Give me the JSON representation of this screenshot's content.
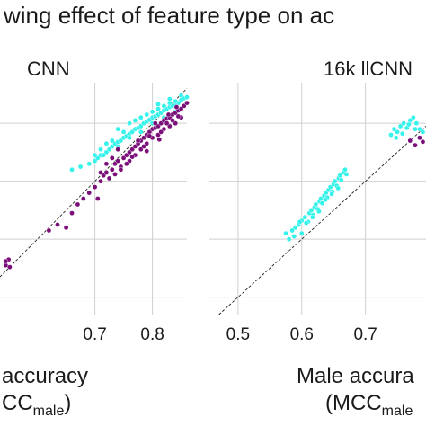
{
  "chart_data": [
    {
      "type": "scatter",
      "title": "CNN",
      "xlabel": "accuracy",
      "xlabel_line2_prefix": "CC",
      "xlabel_line2_sub": "male",
      "xlabel_line2_suffix": ")",
      "xticks": [
        "0.7",
        "0.8"
      ],
      "xlim": [
        0.535,
        0.86
      ],
      "ylim": [
        0.47,
        0.87
      ],
      "identity_line": true,
      "grid": true,
      "series_colors": [
        "#35f2ea",
        "#7a0f7a"
      ],
      "series": [
        {
          "color": "#35f2ea",
          "points": [
            [
              0.66,
              0.72
            ],
            [
              0.675,
              0.725
            ],
            [
              0.69,
              0.73
            ],
            [
              0.7,
              0.735
            ],
            [
              0.705,
              0.74
            ],
            [
              0.71,
              0.745
            ],
            [
              0.715,
              0.745
            ],
            [
              0.72,
              0.75
            ],
            [
              0.725,
              0.755
            ],
            [
              0.73,
              0.76
            ],
            [
              0.735,
              0.765
            ],
            [
              0.74,
              0.768
            ],
            [
              0.745,
              0.77
            ],
            [
              0.75,
              0.775
            ],
            [
              0.755,
              0.778
            ],
            [
              0.76,
              0.782
            ],
            [
              0.765,
              0.785
            ],
            [
              0.77,
              0.79
            ],
            [
              0.775,
              0.792
            ],
            [
              0.78,
              0.795
            ],
            [
              0.785,
              0.8
            ],
            [
              0.79,
              0.803
            ],
            [
              0.795,
              0.806
            ],
            [
              0.8,
              0.81
            ],
            [
              0.805,
              0.812
            ],
            [
              0.81,
              0.815
            ],
            [
              0.815,
              0.818
            ],
            [
              0.82,
              0.822
            ],
            [
              0.825,
              0.825
            ],
            [
              0.83,
              0.828
            ],
            [
              0.835,
              0.83
            ],
            [
              0.84,
              0.832
            ],
            [
              0.845,
              0.835
            ],
            [
              0.85,
              0.84
            ],
            [
              0.855,
              0.843
            ],
            [
              0.74,
              0.79
            ],
            [
              0.76,
              0.8
            ],
            [
              0.78,
              0.81
            ],
            [
              0.8,
              0.82
            ],
            [
              0.82,
              0.83
            ],
            [
              0.84,
              0.838
            ],
            [
              0.77,
              0.805
            ],
            [
              0.79,
              0.815
            ],
            [
              0.81,
              0.825
            ],
            [
              0.83,
              0.835
            ],
            [
              0.75,
              0.785
            ],
            [
              0.73,
              0.77
            ],
            [
              0.72,
              0.765
            ],
            [
              0.71,
              0.755
            ],
            [
              0.7,
              0.745
            ],
            [
              0.78,
              0.785
            ],
            [
              0.8,
              0.8
            ],
            [
              0.82,
              0.81
            ],
            [
              0.84,
              0.82
            ],
            [
              0.76,
              0.775
            ],
            [
              0.74,
              0.76
            ],
            [
              0.86,
              0.845
            ],
            [
              0.85,
              0.848
            ],
            [
              0.83,
              0.842
            ],
            [
              0.81,
              0.833
            ]
          ]
        },
        {
          "color": "#7a0f7a",
          "points": [
            [
              0.545,
              0.555
            ],
            [
              0.55,
              0.565
            ],
            [
              0.552,
              0.552
            ],
            [
              0.545,
              0.562
            ],
            [
              0.62,
              0.615
            ],
            [
              0.635,
              0.625
            ],
            [
              0.65,
              0.62
            ],
            [
              0.66,
              0.645
            ],
            [
              0.67,
              0.66
            ],
            [
              0.68,
              0.67
            ],
            [
              0.69,
              0.68
            ],
            [
              0.7,
              0.69
            ],
            [
              0.705,
              0.67
            ],
            [
              0.71,
              0.7
            ],
            [
              0.715,
              0.71
            ],
            [
              0.72,
              0.715
            ],
            [
              0.725,
              0.705
            ],
            [
              0.73,
              0.72
            ],
            [
              0.735,
              0.73
            ],
            [
              0.74,
              0.735
            ],
            [
              0.745,
              0.725
            ],
            [
              0.75,
              0.74
            ],
            [
              0.755,
              0.745
            ],
            [
              0.76,
              0.75
            ],
            [
              0.765,
              0.755
            ],
            [
              0.77,
              0.76
            ],
            [
              0.775,
              0.765
            ],
            [
              0.78,
              0.77
            ],
            [
              0.785,
              0.775
            ],
            [
              0.79,
              0.78
            ],
            [
              0.795,
              0.785
            ],
            [
              0.8,
              0.79
            ],
            [
              0.805,
              0.792
            ],
            [
              0.81,
              0.795
            ],
            [
              0.815,
              0.8
            ],
            [
              0.82,
              0.805
            ],
            [
              0.825,
              0.808
            ],
            [
              0.83,
              0.81
            ],
            [
              0.835,
              0.815
            ],
            [
              0.84,
              0.818
            ],
            [
              0.845,
              0.822
            ],
            [
              0.85,
              0.825
            ],
            [
              0.855,
              0.83
            ],
            [
              0.76,
              0.735
            ],
            [
              0.77,
              0.745
            ],
            [
              0.78,
              0.755
            ],
            [
              0.79,
              0.765
            ],
            [
              0.8,
              0.775
            ],
            [
              0.81,
              0.78
            ],
            [
              0.82,
              0.79
            ],
            [
              0.83,
              0.795
            ],
            [
              0.84,
              0.8
            ],
            [
              0.85,
              0.81
            ],
            [
              0.775,
              0.77
            ],
            [
              0.795,
              0.778
            ],
            [
              0.815,
              0.785
            ],
            [
              0.835,
              0.805
            ],
            [
              0.805,
              0.8
            ],
            [
              0.825,
              0.8
            ],
            [
              0.845,
              0.812
            ],
            [
              0.785,
              0.76
            ],
            [
              0.765,
              0.742
            ],
            [
              0.755,
              0.73
            ],
            [
              0.745,
              0.72
            ],
            [
              0.735,
              0.712
            ],
            [
              0.86,
              0.835
            ],
            [
              0.812,
              0.772
            ],
            [
              0.79,
              0.752
            ],
            [
              0.828,
              0.815
            ],
            [
              0.842,
              0.828
            ],
            [
              0.71,
              0.715
            ],
            [
              0.72,
              0.73
            ],
            [
              0.73,
              0.74
            ],
            [
              0.74,
              0.755
            ]
          ]
        }
      ]
    },
    {
      "type": "scatter",
      "title": "16k llCNN",
      "xlabel": "Male accura",
      "xlabel_line2_prefix": "(MCC",
      "xlabel_line2_sub": "male",
      "xlabel_line2_suffix": "",
      "xticks": [
        "0.5",
        "0.6",
        "0.7"
      ],
      "xlim": [
        0.455,
        0.795
      ],
      "ylim": [
        0.47,
        0.87
      ],
      "identity_line": true,
      "grid": true,
      "series_colors": [
        "#35f2ea",
        "#7a0f7a"
      ],
      "series": [
        {
          "color": "#35f2ea",
          "points": [
            [
              0.575,
              0.61
            ],
            [
              0.58,
              0.6
            ],
            [
              0.585,
              0.615
            ],
            [
              0.59,
              0.62
            ],
            [
              0.595,
              0.625
            ],
            [
              0.6,
              0.632
            ],
            [
              0.605,
              0.638
            ],
            [
              0.61,
              0.63
            ],
            [
              0.612,
              0.645
            ],
            [
              0.615,
              0.65
            ],
            [
              0.618,
              0.642
            ],
            [
              0.62,
              0.655
            ],
            [
              0.622,
              0.66
            ],
            [
              0.625,
              0.652
            ],
            [
              0.628,
              0.665
            ],
            [
              0.63,
              0.67
            ],
            [
              0.632,
              0.662
            ],
            [
              0.635,
              0.675
            ],
            [
              0.638,
              0.68
            ],
            [
              0.64,
              0.672
            ],
            [
              0.642,
              0.685
            ],
            [
              0.645,
              0.69
            ],
            [
              0.648,
              0.682
            ],
            [
              0.65,
              0.695
            ],
            [
              0.652,
              0.7
            ],
            [
              0.655,
              0.692
            ],
            [
              0.658,
              0.705
            ],
            [
              0.66,
              0.71
            ],
            [
              0.662,
              0.702
            ],
            [
              0.665,
              0.715
            ],
            [
              0.668,
              0.72
            ],
            [
              0.67,
              0.712
            ],
            [
              0.6,
              0.61
            ],
            [
              0.588,
              0.605
            ],
            [
              0.597,
              0.63
            ],
            [
              0.607,
              0.628
            ],
            [
              0.617,
              0.638
            ],
            [
              0.627,
              0.648
            ],
            [
              0.637,
              0.668
            ],
            [
              0.647,
              0.678
            ],
            [
              0.657,
              0.688
            ],
            [
              0.74,
              0.78
            ],
            [
              0.745,
              0.79
            ],
            [
              0.75,
              0.785
            ],
            [
              0.755,
              0.795
            ],
            [
              0.76,
              0.8
            ],
            [
              0.765,
              0.792
            ],
            [
              0.77,
              0.805
            ],
            [
              0.775,
              0.81
            ],
            [
              0.78,
              0.8
            ],
            [
              0.785,
              0.79
            ],
            [
              0.79,
              0.785
            ],
            [
              0.748,
              0.775
            ],
            [
              0.758,
              0.782
            ],
            [
              0.768,
              0.798
            ],
            [
              0.778,
              0.79
            ]
          ]
        },
        {
          "color": "#7a0f7a",
          "points": [
            [
              0.77,
              0.77
            ],
            [
              0.778,
              0.762
            ],
            [
              0.785,
              0.775
            ],
            [
              0.79,
              0.768
            ]
          ]
        }
      ]
    }
  ],
  "header": {
    "title": "wing effect of feature type on ac"
  }
}
